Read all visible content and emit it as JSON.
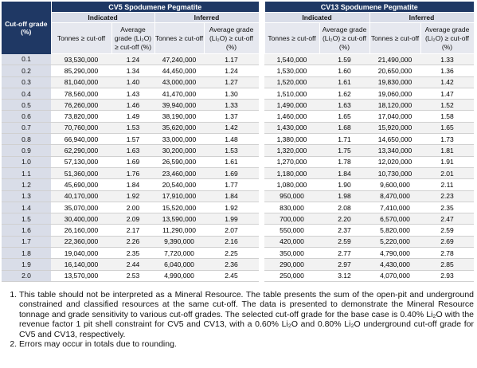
{
  "table": {
    "cutoff_header": "Cut-off grade (%)",
    "groups": [
      {
        "title": "CV5 Spodumene Pegmatite",
        "subgroups": [
          "Indicated",
          "Inferred"
        ],
        "columns": [
          "Tonnes ≥ cut-off",
          "Average grade (Li₂O) ≥ cut-off (%)",
          "Tonnes ≥ cut-off",
          "Average grade (Li₂O) ≥ cut-off (%)"
        ]
      },
      {
        "title": "CV13 Spodumene Pegmatite",
        "subgroups": [
          "Indicated",
          "Inferred"
        ],
        "columns": [
          "Tonnes ≥ cut-off",
          "Average grade (Li₂O) ≥ cut-off (%)",
          "Tonnes ≥ cut-off",
          "Average grade (Li₂O) ≥ cut-off (%)"
        ]
      }
    ],
    "rows": [
      [
        "0.1",
        "93,530,000",
        "1.24",
        "47,240,000",
        "1.17",
        "1,540,000",
        "1.59",
        "21,490,000",
        "1.33"
      ],
      [
        "0.2",
        "85,290,000",
        "1.34",
        "44,450,000",
        "1.24",
        "1,530,000",
        "1.60",
        "20,650,000",
        "1.36"
      ],
      [
        "0.3",
        "81,040,000",
        "1.40",
        "43,000,000",
        "1.27",
        "1,520,000",
        "1.61",
        "19,830,000",
        "1.42"
      ],
      [
        "0.4",
        "78,560,000",
        "1.43",
        "41,470,000",
        "1.30",
        "1,510,000",
        "1.62",
        "19,060,000",
        "1.47"
      ],
      [
        "0.5",
        "76,260,000",
        "1.46",
        "39,940,000",
        "1.33",
        "1,490,000",
        "1.63",
        "18,120,000",
        "1.52"
      ],
      [
        "0.6",
        "73,820,000",
        "1.49",
        "38,190,000",
        "1.37",
        "1,460,000",
        "1.65",
        "17,040,000",
        "1.58"
      ],
      [
        "0.7",
        "70,760,000",
        "1.53",
        "35,620,000",
        "1.42",
        "1,430,000",
        "1.68",
        "15,920,000",
        "1.65"
      ],
      [
        "0.8",
        "66,940,000",
        "1.57",
        "33,000,000",
        "1.48",
        "1,380,000",
        "1.71",
        "14,650,000",
        "1.73"
      ],
      [
        "0.9",
        "62,290,000",
        "1.63",
        "30,200,000",
        "1.53",
        "1,320,000",
        "1.75",
        "13,340,000",
        "1.81"
      ],
      [
        "1.0",
        "57,130,000",
        "1.69",
        "26,590,000",
        "1.61",
        "1,270,000",
        "1.78",
        "12,020,000",
        "1.91"
      ],
      [
        "1.1",
        "51,360,000",
        "1.76",
        "23,460,000",
        "1.69",
        "1,180,000",
        "1.84",
        "10,730,000",
        "2.01"
      ],
      [
        "1.2",
        "45,690,000",
        "1.84",
        "20,540,000",
        "1.77",
        "1,080,000",
        "1.90",
        "9,600,000",
        "2.11"
      ],
      [
        "1.3",
        "40,170,000",
        "1.92",
        "17,910,000",
        "1.84",
        "950,000",
        "1.98",
        "8,470,000",
        "2.23"
      ],
      [
        "1.4",
        "35,070,000",
        "2.00",
        "15,520,000",
        "1.92",
        "830,000",
        "2.08",
        "7,410,000",
        "2.35"
      ],
      [
        "1.5",
        "30,400,000",
        "2.09",
        "13,590,000",
        "1.99",
        "700,000",
        "2.20",
        "6,570,000",
        "2.47"
      ],
      [
        "1.6",
        "26,160,000",
        "2.17",
        "11,290,000",
        "2.07",
        "550,000",
        "2.37",
        "5,820,000",
        "2.59"
      ],
      [
        "1.7",
        "22,360,000",
        "2.26",
        "9,390,000",
        "2.16",
        "420,000",
        "2.59",
        "5,220,000",
        "2.69"
      ],
      [
        "1.8",
        "19,040,000",
        "2.35",
        "7,720,000",
        "2.25",
        "350,000",
        "2.77",
        "4,790,000",
        "2.78"
      ],
      [
        "1.9",
        "16,140,000",
        "2.44",
        "6,040,000",
        "2.36",
        "290,000",
        "2.97",
        "4,430,000",
        "2.85"
      ],
      [
        "2.0",
        "13,570,000",
        "2.53",
        "4,990,000",
        "2.45",
        "250,000",
        "3.12",
        "4,070,000",
        "2.93"
      ]
    ]
  },
  "notes": [
    "This table should not be interpreted as a Mineral Resource. The table presents the sum of the open-pit and underground constrained and classified resources at the same cut-off. The data is presented to demonstrate the Mineral Resource tonnage and grade sensitivity to various cut-off grades. The selected cut-off grade for the base case is 0.40% Li₂O with the revenue factor 1 pit shell constraint for CV5 and CV13, with a 0.60% Li₂O and 0.80% Li₂O underground cut-off grade for CV5 and CV13, respectively.",
    "Errors may occur in totals due to rounding."
  ]
}
